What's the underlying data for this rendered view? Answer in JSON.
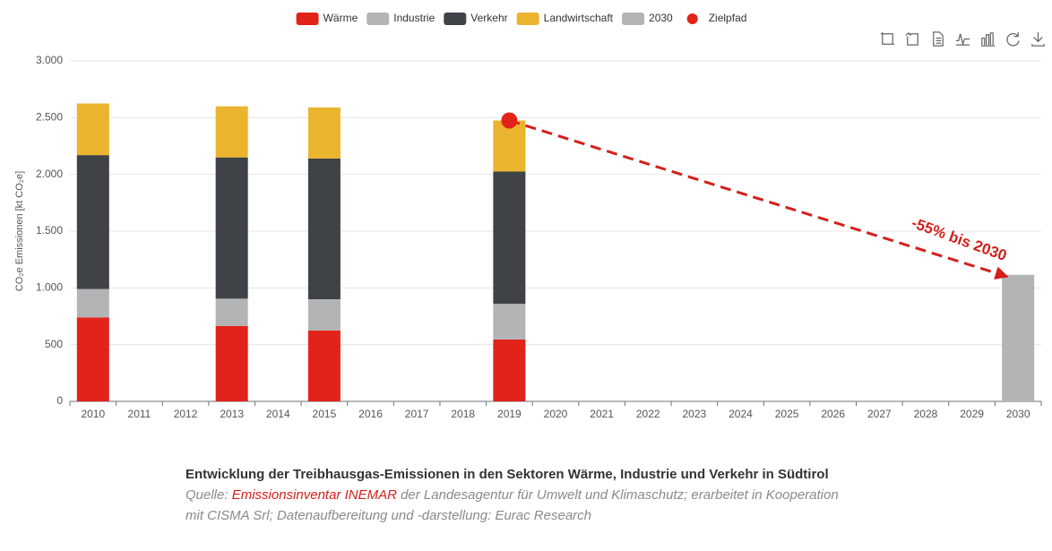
{
  "chart_data": {
    "type": "bar",
    "stacked": true,
    "ylabel": "CO₂e Emissionen [kt CO₂e]",
    "categories": [
      "2010",
      "2011",
      "2012",
      "2013",
      "2014",
      "2015",
      "2016",
      "2017",
      "2018",
      "2019",
      "2020",
      "2021",
      "2022",
      "2023",
      "2024",
      "2025",
      "2026",
      "2027",
      "2028",
      "2029",
      "2030"
    ],
    "series": [
      {
        "name": "Wärme",
        "color": "#e2231a",
        "values": [
          740,
          null,
          null,
          665,
          null,
          625,
          null,
          null,
          null,
          545,
          null,
          null,
          null,
          null,
          null,
          null,
          null,
          null,
          null,
          null,
          null
        ]
      },
      {
        "name": "Industrie",
        "color": "#b2b4b5",
        "values": [
          250,
          null,
          null,
          240,
          null,
          275,
          null,
          null,
          null,
          315,
          null,
          null,
          null,
          null,
          null,
          null,
          null,
          null,
          null,
          null,
          null
        ]
      },
      {
        "name": "Verkehr",
        "color": "#3f4347",
        "values": [
          1180,
          null,
          null,
          1245,
          null,
          1240,
          null,
          null,
          null,
          1165,
          null,
          null,
          null,
          null,
          null,
          null,
          null,
          null,
          null,
          null,
          null
        ]
      },
      {
        "name": "Landwirtschaft",
        "color": "#ebb42f",
        "values": [
          455,
          null,
          null,
          450,
          null,
          450,
          null,
          null,
          null,
          450,
          null,
          null,
          null,
          null,
          null,
          null,
          null,
          null,
          null,
          null,
          null
        ]
      },
      {
        "name": "2030",
        "color": "#b2b4b5",
        "values": [
          null,
          null,
          null,
          null,
          null,
          null,
          null,
          null,
          null,
          null,
          null,
          null,
          null,
          null,
          null,
          null,
          null,
          null,
          null,
          null,
          1115
        ]
      },
      {
        "name": "Zielpfad",
        "color": "#e2231a",
        "kind": "scatter",
        "values": [
          null,
          null,
          null,
          null,
          null,
          null,
          null,
          null,
          null,
          2475,
          null,
          null,
          null,
          null,
          null,
          null,
          null,
          null,
          null,
          null,
          null
        ]
      }
    ],
    "annotation": "-55% bis 2030",
    "annotation_color": "#d4201b",
    "ylim": [
      0,
      3000
    ],
    "yticks": [
      0,
      500,
      {
        "value": 1000,
        "label": "1.000"
      },
      {
        "value": 1500,
        "label": "1.500"
      },
      {
        "value": 2000,
        "label": "2.000"
      },
      {
        "value": 2500,
        "label": "2.500"
      },
      {
        "value": 3000,
        "label": "3.000"
      }
    ],
    "grid": true
  },
  "caption": {
    "title": "Entwicklung der Treibhausgas-Emissionen in den Sektoren Wärme, Industrie und Verkehr in Südtirol",
    "source_prefix": "Quelle: ",
    "source_link": "Emissionsinventar INEMAR",
    "source_rest": " der Landesagentur für Umwelt und Klimaschutz; erarbeitet in Kooperation mit CISMA Srl; Datenaufbereitung und -darstellung: Eurac Research"
  }
}
